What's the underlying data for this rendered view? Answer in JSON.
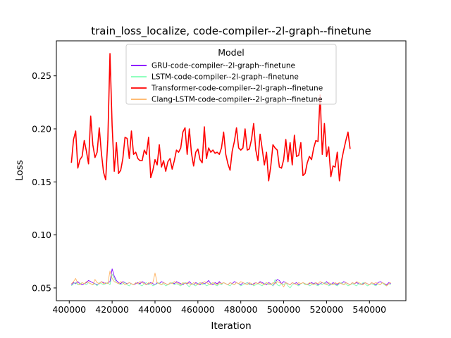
{
  "chart_data": {
    "type": "line",
    "title": "train_loss_localize, code-compiler--2l-graph--finetune",
    "xlabel": "Iteration",
    "ylabel": "Loss",
    "xlim": [
      394000,
      557000
    ],
    "ylim": [
      0.038,
      0.283
    ],
    "xticks": [
      400000,
      420000,
      440000,
      460000,
      480000,
      500000,
      520000,
      540000
    ],
    "xtick_labels": [
      "400000",
      "420000",
      "440000",
      "460000",
      "480000",
      "500000",
      "520000",
      "540000"
    ],
    "yticks": [
      0.05,
      0.1,
      0.15,
      0.2,
      0.25
    ],
    "ytick_labels": [
      "0.05",
      "0.10",
      "0.15",
      "0.20",
      "0.25"
    ],
    "grid": false,
    "legend": {
      "title": "Model",
      "placement": "top-center"
    },
    "x_start": 401000,
    "x_step": 1000,
    "series": [
      {
        "name": "GRU-code-compiler--2l-graph--finetune",
        "color": "#7f00ff",
        "values": [
          0.053,
          0.055,
          0.054,
          0.056,
          0.054,
          0.053,
          0.054,
          0.055,
          0.057,
          0.056,
          0.055,
          0.054,
          0.053,
          0.054,
          0.056,
          0.055,
          0.054,
          0.055,
          0.056,
          0.068,
          0.061,
          0.057,
          0.055,
          0.054,
          0.056,
          0.055,
          0.054,
          0.055,
          0.054,
          0.053,
          0.054,
          0.055,
          0.054,
          0.056,
          0.055,
          0.053,
          0.054,
          0.055,
          0.054,
          0.053,
          0.055,
          0.054,
          0.056,
          0.055,
          0.054,
          0.053,
          0.054,
          0.055,
          0.054,
          0.056,
          0.055,
          0.054,
          0.053,
          0.055,
          0.054,
          0.056,
          0.054,
          0.053,
          0.055,
          0.054,
          0.053,
          0.055,
          0.054,
          0.055,
          0.057,
          0.054,
          0.053,
          0.055,
          0.054,
          0.056,
          0.054,
          0.055,
          0.054,
          0.053,
          0.055,
          0.054,
          0.056,
          0.055,
          0.054,
          0.053,
          0.055,
          0.054,
          0.055,
          0.054,
          0.053,
          0.054,
          0.055,
          0.054,
          0.056,
          0.055,
          0.054,
          0.053,
          0.055,
          0.054,
          0.052,
          0.055,
          0.058,
          0.057,
          0.054,
          0.056,
          0.055,
          0.054,
          0.053,
          0.055,
          0.054,
          0.055,
          0.053,
          0.054,
          0.055,
          0.054,
          0.053,
          0.054,
          0.055,
          0.054,
          0.055,
          0.053,
          0.054,
          0.055,
          0.054,
          0.056,
          0.054,
          0.053,
          0.055,
          0.054,
          0.053,
          0.055,
          0.054,
          0.056,
          0.055,
          0.054,
          0.053,
          0.055,
          0.054,
          0.055,
          0.054,
          0.053,
          0.054,
          0.055,
          0.054,
          0.053,
          0.055,
          0.054,
          0.053,
          0.055,
          0.056,
          0.055,
          0.054,
          0.053,
          0.055,
          0.054
        ]
      },
      {
        "name": "LSTM-code-compiler--2l-graph--finetune",
        "color": "#80ffb4",
        "values": [
          0.052,
          0.054,
          0.055,
          0.053,
          0.054,
          0.055,
          0.054,
          0.053,
          0.055,
          0.054,
          0.053,
          0.054,
          0.052,
          0.055,
          0.054,
          0.053,
          0.054,
          0.055,
          0.053,
          0.063,
          0.059,
          0.055,
          0.054,
          0.053,
          0.054,
          0.055,
          0.053,
          0.052,
          0.054,
          0.053,
          0.055,
          0.054,
          0.053,
          0.052,
          0.054,
          0.055,
          0.053,
          0.054,
          0.052,
          0.053,
          0.054,
          0.055,
          0.053,
          0.054,
          0.052,
          0.053,
          0.054,
          0.055,
          0.053,
          0.054,
          0.053,
          0.052,
          0.054,
          0.055,
          0.053,
          0.051,
          0.054,
          0.053,
          0.052,
          0.054,
          0.055,
          0.053,
          0.054,
          0.052,
          0.053,
          0.054,
          0.055,
          0.053,
          0.052,
          0.054,
          0.053,
          0.055,
          0.054,
          0.053,
          0.052,
          0.054,
          0.053,
          0.055,
          0.054,
          0.052,
          0.053,
          0.054,
          0.055,
          0.053,
          0.054,
          0.052,
          0.053,
          0.054,
          0.053,
          0.052,
          0.054,
          0.055,
          0.053,
          0.054,
          0.052,
          0.058,
          0.053,
          0.052,
          0.054,
          0.053,
          0.055,
          0.052,
          0.05,
          0.053,
          0.054,
          0.053,
          0.052,
          0.054,
          0.055,
          0.053,
          0.054,
          0.052,
          0.053,
          0.054,
          0.053,
          0.052,
          0.054,
          0.053,
          0.055,
          0.054,
          0.052,
          0.053,
          0.054,
          0.053,
          0.052,
          0.054,
          0.055,
          0.053,
          0.054,
          0.052,
          0.053,
          0.054,
          0.053,
          0.052,
          0.054,
          0.053,
          0.055,
          0.054,
          0.052,
          0.053,
          0.054,
          0.053,
          0.052,
          0.054,
          0.053,
          0.055,
          0.053,
          0.052,
          0.054,
          0.053
        ]
      },
      {
        "name": "Transformer-code-compiler--2l-graph--finetune",
        "color": "#ff0000",
        "values": [
          0.168,
          0.19,
          0.198,
          0.163,
          0.171,
          0.174,
          0.189,
          0.179,
          0.167,
          0.212,
          0.185,
          0.173,
          0.178,
          0.201,
          0.177,
          0.159,
          0.152,
          0.19,
          0.271,
          0.203,
          0.16,
          0.187,
          0.158,
          0.161,
          0.172,
          0.192,
          0.191,
          0.172,
          0.198,
          0.176,
          0.178,
          0.172,
          0.17,
          0.17,
          0.18,
          0.176,
          0.192,
          0.154,
          0.161,
          0.171,
          0.166,
          0.185,
          0.164,
          0.17,
          0.16,
          0.169,
          0.172,
          0.162,
          0.17,
          0.18,
          0.178,
          0.182,
          0.197,
          0.201,
          0.176,
          0.2,
          0.177,
          0.165,
          0.178,
          0.181,
          0.171,
          0.168,
          0.202,
          0.172,
          0.182,
          0.178,
          0.18,
          0.177,
          0.178,
          0.176,
          0.182,
          0.197,
          0.176,
          0.167,
          0.161,
          0.179,
          0.188,
          0.201,
          0.182,
          0.18,
          0.182,
          0.2,
          0.18,
          0.181,
          0.19,
          0.205,
          0.18,
          0.17,
          0.195,
          0.181,
          0.166,
          0.178,
          0.151,
          0.165,
          0.185,
          0.182,
          0.18,
          0.164,
          0.163,
          0.171,
          0.19,
          0.169,
          0.187,
          0.166,
          0.194,
          0.174,
          0.175,
          0.187,
          0.156,
          0.158,
          0.168,
          0.174,
          0.171,
          0.182,
          0.189,
          0.188,
          0.232,
          0.176,
          0.205,
          0.174,
          0.183,
          0.155,
          0.165,
          0.164,
          0.178,
          0.151,
          0.17,
          0.18,
          0.189,
          0.197,
          0.181
        ]
      },
      {
        "name": "Clang-LSTM-code-compiler--2l-graph--finetune",
        "color": "#ffb360",
        "values": [
          0.054,
          0.056,
          0.059,
          0.054,
          0.053,
          0.055,
          0.054,
          0.056,
          0.055,
          0.054,
          0.053,
          0.058,
          0.055,
          0.054,
          0.056,
          0.054,
          0.055,
          0.054,
          0.066,
          0.059,
          0.056,
          0.055,
          0.054,
          0.056,
          0.055,
          0.053,
          0.054,
          0.055,
          0.054,
          0.053,
          0.055,
          0.054,
          0.056,
          0.055,
          0.054,
          0.053,
          0.055,
          0.054,
          0.055,
          0.064,
          0.055,
          0.054,
          0.053,
          0.055,
          0.054,
          0.053,
          0.055,
          0.054,
          0.056,
          0.055,
          0.054,
          0.053,
          0.055,
          0.054,
          0.055,
          0.054,
          0.053,
          0.055,
          0.054,
          0.053,
          0.055,
          0.054,
          0.056,
          0.055,
          0.054,
          0.053,
          0.055,
          0.054,
          0.053,
          0.055,
          0.054,
          0.055,
          0.054,
          0.053,
          0.055,
          0.054,
          0.053,
          0.055,
          0.054,
          0.056,
          0.055,
          0.054,
          0.053,
          0.055,
          0.054,
          0.053,
          0.055,
          0.054,
          0.055,
          0.054,
          0.053,
          0.055,
          0.054,
          0.053,
          0.055,
          0.054,
          0.056,
          0.055,
          0.054,
          0.051,
          0.055,
          0.054,
          0.053,
          0.055,
          0.054,
          0.053,
          0.055,
          0.054,
          0.055,
          0.054,
          0.053,
          0.055,
          0.054,
          0.053,
          0.055,
          0.054,
          0.056,
          0.055,
          0.054,
          0.053,
          0.055,
          0.054,
          0.053,
          0.055,
          0.054,
          0.055,
          0.054,
          0.053,
          0.055,
          0.054,
          0.053,
          0.055,
          0.054,
          0.056,
          0.055,
          0.054,
          0.053,
          0.055,
          0.054,
          0.053,
          0.055,
          0.054,
          0.055,
          0.054,
          0.053,
          0.055,
          0.054,
          0.052,
          0.054,
          0.055
        ]
      }
    ]
  }
}
